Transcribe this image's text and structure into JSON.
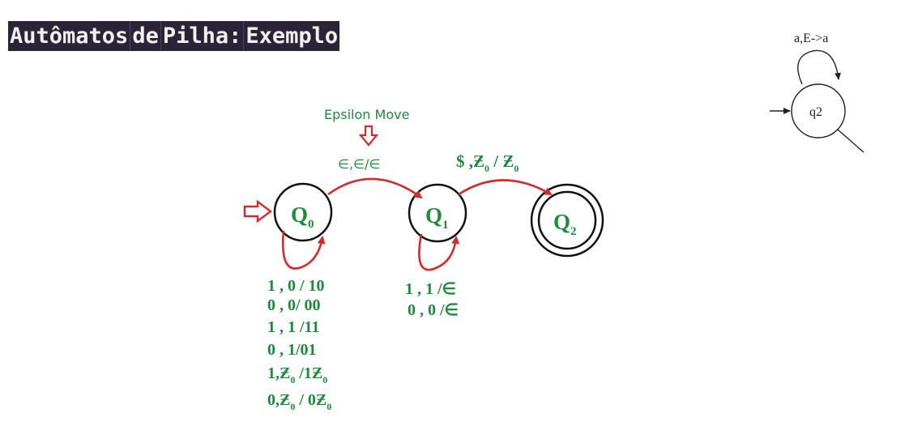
{
  "title": {
    "segments": [
      "Autômatos",
      "de",
      "Pilha:",
      "Exemplo"
    ]
  },
  "annotation": "Epsilon Move",
  "states": {
    "q0": {
      "label": "Q",
      "sub": "0"
    },
    "q1": {
      "label": "Q",
      "sub": "1"
    },
    "q2": {
      "label": "Q",
      "sub": "2"
    }
  },
  "transitions": {
    "q0_q1": "∈,∈/∈",
    "q1_q2": {
      "a": "$ ,",
      "z1": "Ƶ",
      "s1": "0",
      "mid": " / ",
      "z2": "Ƶ",
      "s2": "0"
    },
    "q0_loop": [
      {
        "t": "1 ,  0  / 10"
      },
      {
        "t": "0 , 0/ 00"
      },
      {
        "t": "1 , 1 /11"
      },
      {
        "t": "0 , 1/01"
      },
      {
        "a": "1,",
        "z": "Ƶ",
        "s": "0",
        "b": " /1",
        "z2": "Ƶ",
        "s2": "0"
      },
      {
        "a": "0,",
        "z": "Ƶ",
        "s": "0",
        "b": " / 0",
        "z2": "Ƶ",
        "s2": "0"
      }
    ],
    "q1_loop": [
      "1 , 1 /∈",
      "0 , 0 /∈"
    ]
  },
  "inset": {
    "state_label": "q2",
    "loop_label": "a,E->a"
  }
}
